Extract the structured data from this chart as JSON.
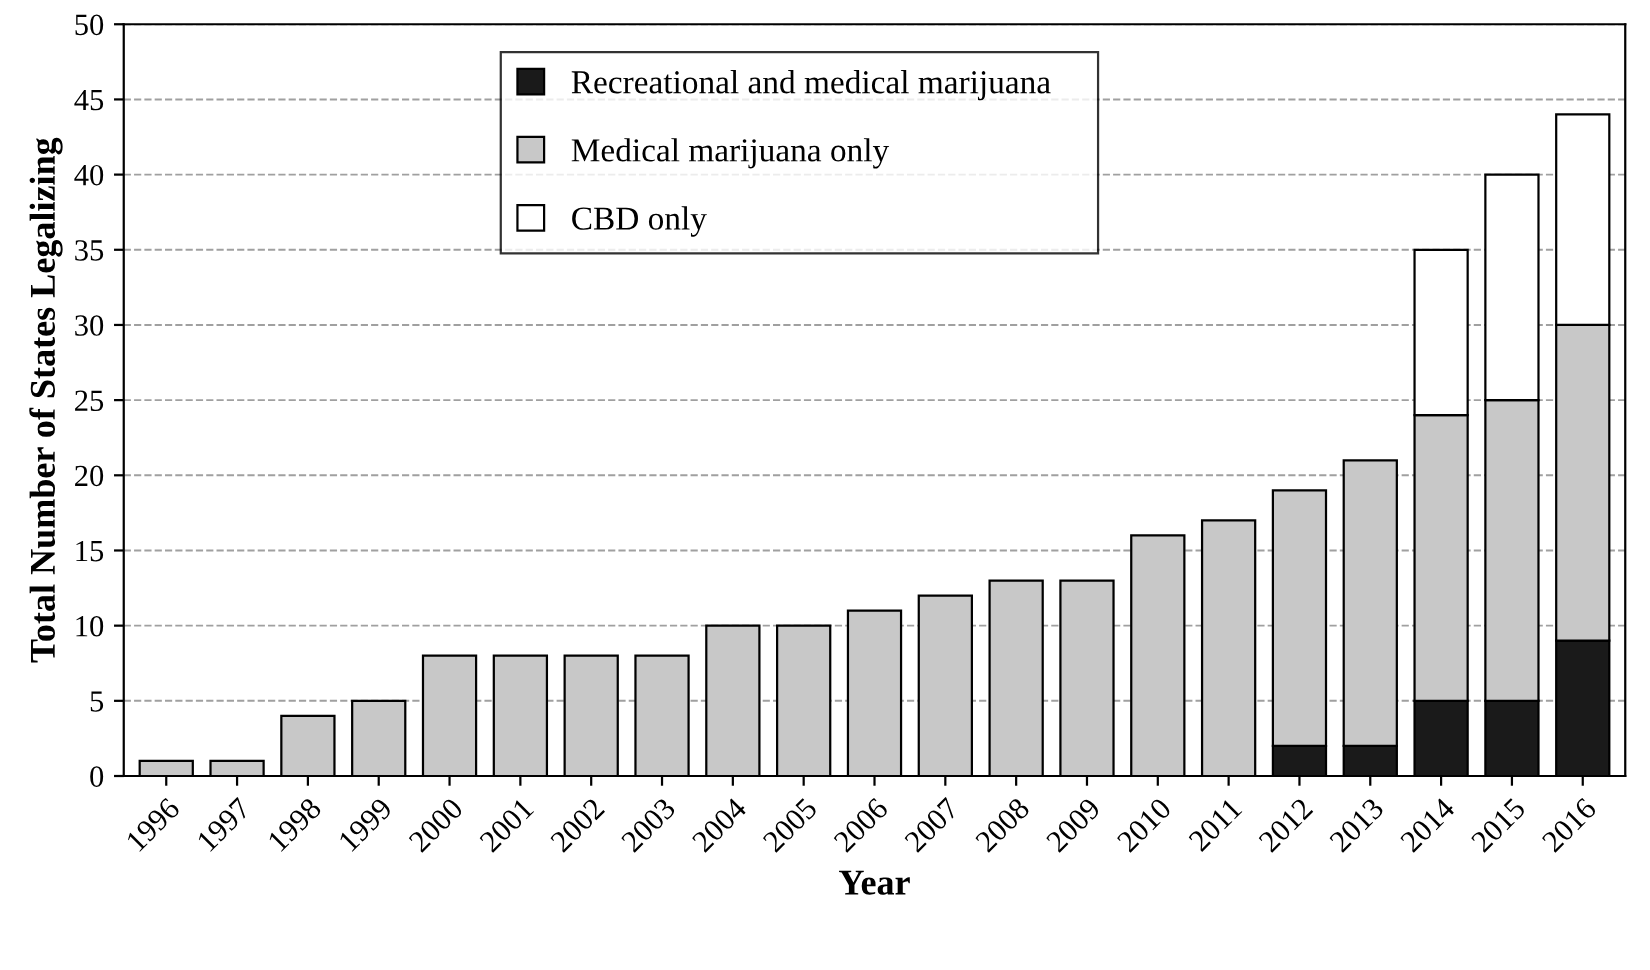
{
  "chart_data": {
    "type": "bar",
    "stacked": true,
    "xlabel": "Year",
    "ylabel": "Total Number of States Legalizing",
    "categories": [
      "1996",
      "1997",
      "1998",
      "1999",
      "2000",
      "2001",
      "2002",
      "2003",
      "2004",
      "2005",
      "2006",
      "2007",
      "2008",
      "2009",
      "2010",
      "2011",
      "2012",
      "2013",
      "2014",
      "2015",
      "2016"
    ],
    "series": [
      {
        "name": "Recreational and medical marijuana",
        "color": "#1a1a1a",
        "values": [
          null,
          null,
          null,
          null,
          null,
          null,
          null,
          null,
          null,
          null,
          null,
          null,
          null,
          null,
          null,
          null,
          2,
          2,
          5,
          5,
          9
        ]
      },
      {
        "name": "Medical marijuana only",
        "color": "#c8c8c8",
        "values": [
          1,
          1,
          4,
          5,
          8,
          8,
          8,
          8,
          10,
          10,
          11,
          12,
          13,
          13,
          16,
          17,
          17,
          19,
          19,
          20,
          21
        ]
      },
      {
        "name": "CBD only",
        "color": "#ffffff",
        "values": [
          null,
          null,
          null,
          null,
          null,
          null,
          null,
          null,
          null,
          null,
          null,
          null,
          null,
          null,
          null,
          null,
          null,
          null,
          11,
          15,
          14
        ]
      }
    ],
    "ylim": [
      0,
      50
    ],
    "yticks": [
      0,
      5,
      10,
      15,
      20,
      25,
      30,
      35,
      40,
      45,
      50
    ],
    "grid": "y",
    "legend": "top"
  }
}
